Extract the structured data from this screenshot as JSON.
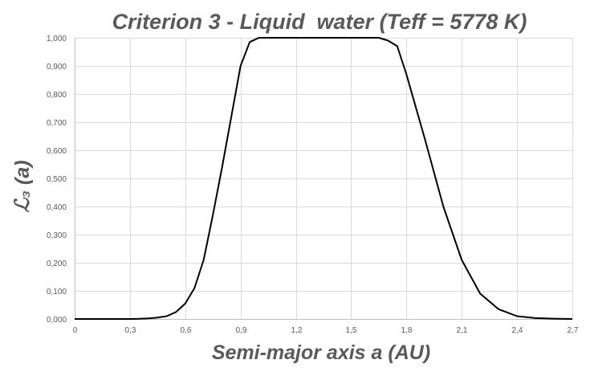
{
  "chart_data": {
    "type": "line",
    "title": "Criterion 3 - Liquid  water (Teff = 5778 K)",
    "xlabel": "Semi-major axis a (AU)",
    "ylabel": "ℒ₃ (a)",
    "xlim": [
      0,
      2.7
    ],
    "ylim": [
      0,
      1
    ],
    "x_ticks": [
      "0",
      "0,3",
      "0,6",
      "0,9",
      "1,2",
      "1,5",
      "1,8",
      "2,1",
      "2,4",
      "2,7"
    ],
    "y_ticks": [
      "0,000",
      "0,100",
      "0,200",
      "0,300",
      "0,400",
      "0,500",
      "0,600",
      "0,700",
      "0,800",
      "0,900",
      "1,000"
    ],
    "x_tick_values": [
      0,
      0.3,
      0.6,
      0.9,
      1.2,
      1.5,
      1.8,
      2.1,
      2.4,
      2.7
    ],
    "y_tick_values": [
      0,
      0.1,
      0.2,
      0.3,
      0.4,
      0.5,
      0.6,
      0.7,
      0.8,
      0.9,
      1.0
    ],
    "grid": "horizontal and vertical",
    "legend": "none",
    "line_color": "#000000",
    "series": [
      {
        "x": [
          0,
          0.1,
          0.2,
          0.3,
          0.35,
          0.4,
          0.45,
          0.5,
          0.55,
          0.6,
          0.65,
          0.7,
          0.75,
          0.8,
          0.85,
          0.9,
          0.95,
          1.0,
          1.1,
          1.2,
          1.3,
          1.4,
          1.5,
          1.6,
          1.65,
          1.7,
          1.75,
          1.8,
          1.9,
          2.0,
          2.1,
          2.2,
          2.3,
          2.4,
          2.5,
          2.6,
          2.7
        ],
        "values": [
          0,
          0,
          0,
          0,
          0.0005,
          0.002,
          0.005,
          0.01,
          0.025,
          0.055,
          0.11,
          0.21,
          0.37,
          0.54,
          0.72,
          0.9,
          0.985,
          1.0,
          1.0,
          1.0,
          1.0,
          1.0,
          1.0,
          1.0,
          1.0,
          0.99,
          0.97,
          0.87,
          0.64,
          0.4,
          0.21,
          0.09,
          0.035,
          0.01,
          0.003,
          0.001,
          0
        ]
      }
    ]
  }
}
